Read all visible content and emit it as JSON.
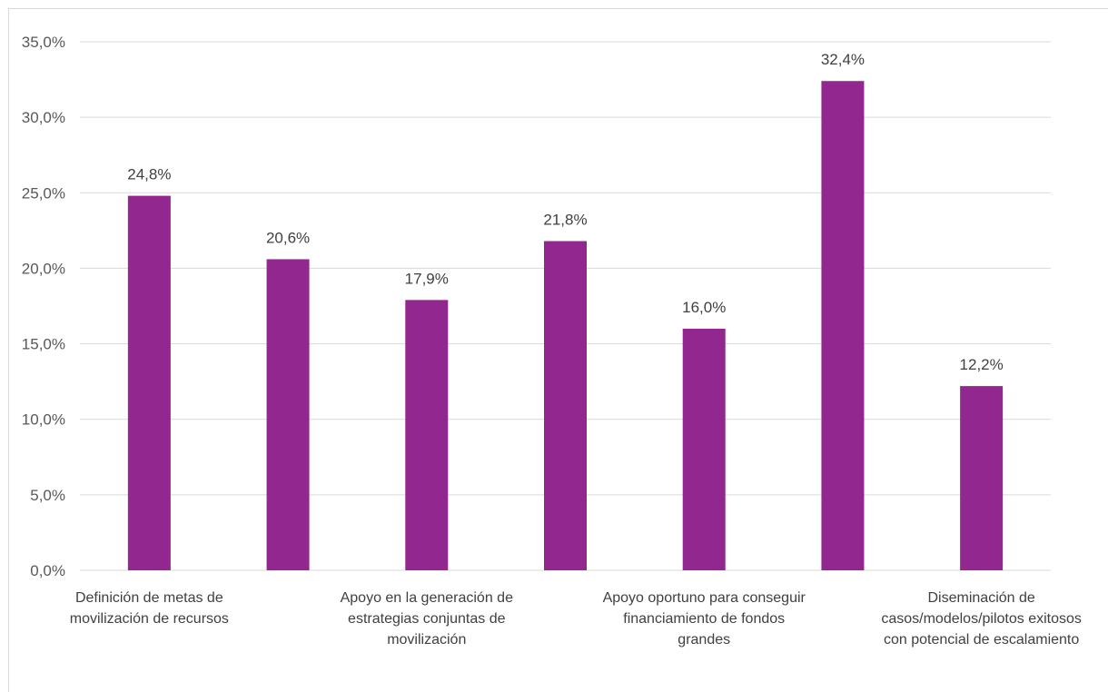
{
  "chart_data": {
    "type": "bar",
    "title": "",
    "xlabel": "",
    "ylabel": "",
    "categories": [
      "Definición de metas de movilización de recursos",
      "",
      "Apoyo en la generación de estrategias conjuntas de movilización",
      "",
      "Apoyo oportuno para conseguir financiamiento de fondos grandes",
      "",
      "Diseminación de casos/modelos/pilotos exitosos con potencial de escalamiento"
    ],
    "category_label_lines": [
      [
        "Definición de metas de",
        "movilización de recursos"
      ],
      [],
      [
        "Apoyo en la generación de",
        "estrategias conjuntas de",
        "movilización"
      ],
      [],
      [
        "Apoyo oportuno para conseguir",
        "financiamiento de fondos",
        "grandes"
      ],
      [],
      [
        "Diseminación de",
        "casos/modelos/pilotos exitosos",
        "con potencial de escalamiento"
      ]
    ],
    "values": [
      24.8,
      20.6,
      17.9,
      21.8,
      16.0,
      32.4,
      12.2
    ],
    "data_labels": [
      "24,8%",
      "20,6%",
      "17,9%",
      "21,8%",
      "16,0%",
      "32,4%",
      "12,2%"
    ],
    "ylim": [
      0,
      35
    ],
    "yticks": [
      0,
      5,
      10,
      15,
      20,
      25,
      30,
      35
    ],
    "ytick_labels": [
      "0,0%",
      "5,0%",
      "10,0%",
      "15,0%",
      "20,0%",
      "25,0%",
      "30,0%",
      "35,0%"
    ],
    "grid": true,
    "legend": "none",
    "bar_color": "#92278f",
    "grid_color": "#d9d9d9"
  }
}
